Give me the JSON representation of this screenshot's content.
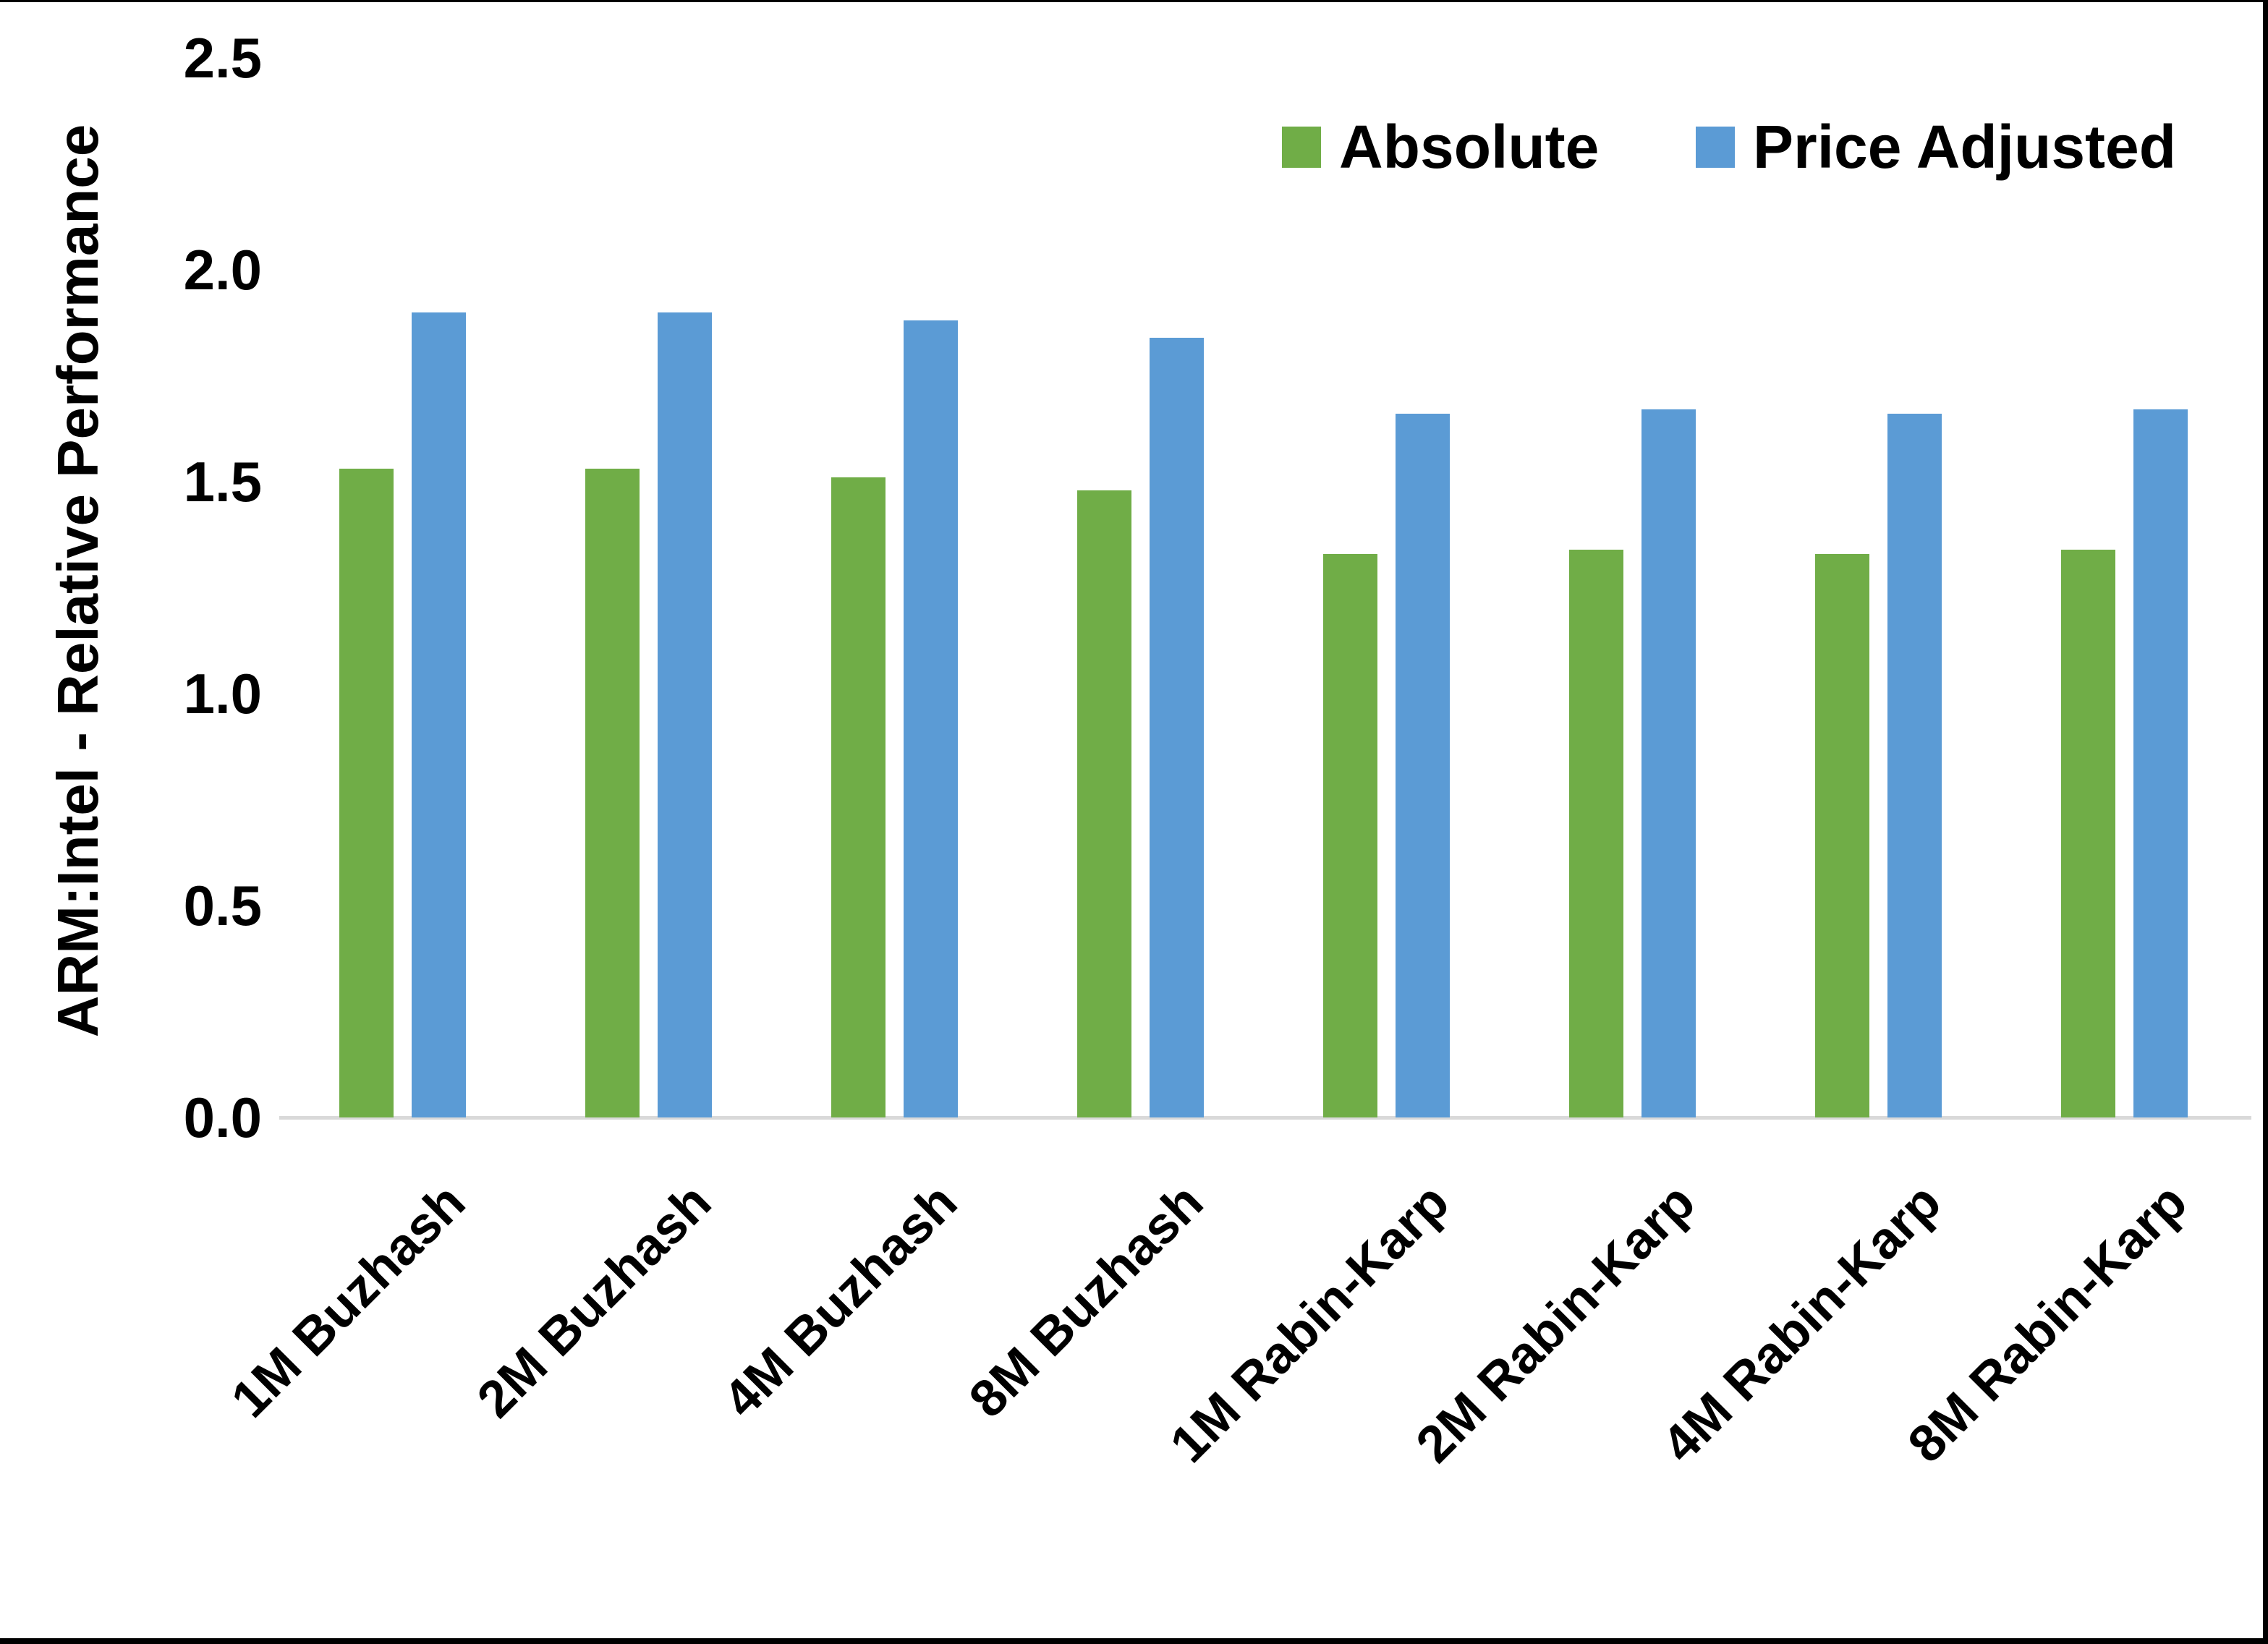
{
  "frame": {
    "background": "#FFFFFF",
    "border_color": "#000000"
  },
  "chart_data": {
    "type": "bar",
    "title": "",
    "ylabel": "ARM:Intel - Relative Performance",
    "xlabel": "",
    "categories": [
      "1M Buzhash",
      "2M Buzhash",
      "4M Buzhash",
      "8M Buzhash",
      "1M Rabin-Karp",
      "2M Rabin-Karp",
      "4M Rabin-Karp",
      "8M Rabin-Karp"
    ],
    "series": [
      {
        "name": "Absolute",
        "color": "#70AD47",
        "values": [
          1.53,
          1.53,
          1.51,
          1.48,
          1.33,
          1.34,
          1.33,
          1.34
        ]
      },
      {
        "name": "Price Adjusted",
        "color": "#5B9BD5",
        "values": [
          1.9,
          1.9,
          1.88,
          1.84,
          1.66,
          1.67,
          1.66,
          1.67
        ]
      }
    ],
    "ylim": [
      0,
      2.5
    ],
    "ytick_step": 0.5,
    "ytick_labels": [
      "0.0",
      "0.5",
      "1.0",
      "1.5",
      "2.0",
      "2.5"
    ],
    "grid": false,
    "legend_position": "top-right",
    "axis_line_color": "#D9D9D9",
    "text_color": "#000000"
  }
}
